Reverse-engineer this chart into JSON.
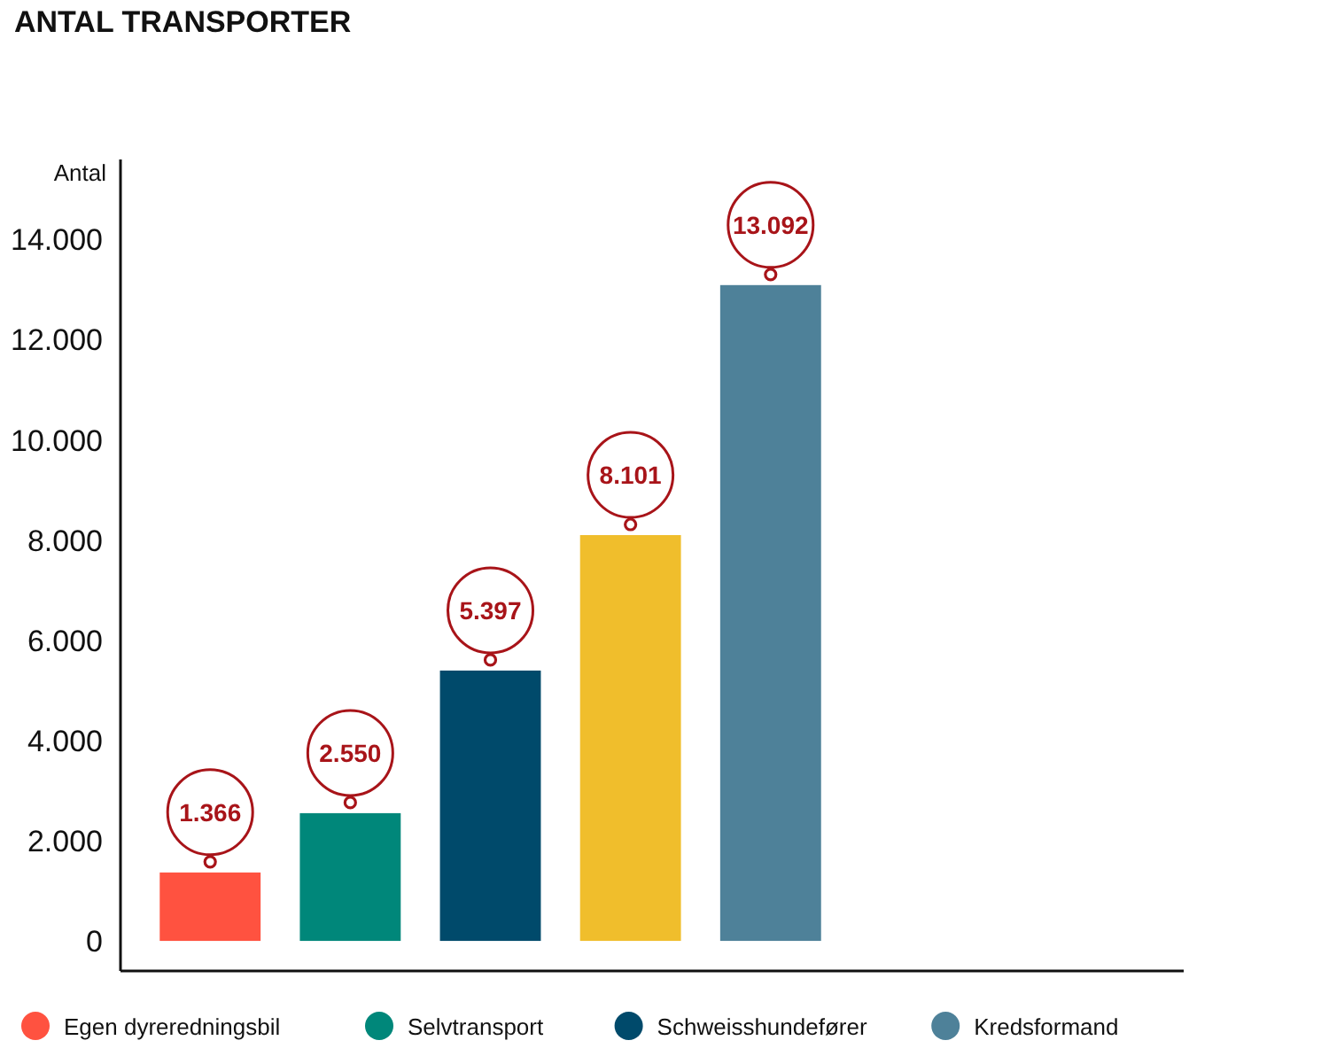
{
  "chart_data": {
    "type": "bar",
    "title": "ANTAL TRANSPORTER",
    "ylabel": "Antal",
    "categories": [
      null,
      null,
      null,
      null,
      null
    ],
    "series": [
      {
        "name": "Egen dyreredningsbil",
        "color": "#ff5240",
        "values": [
          1366,
          null,
          null,
          null,
          null
        ],
        "value_labels": [
          "1.366",
          null,
          null,
          null,
          null
        ]
      },
      {
        "name": "Selvtransport",
        "color": "#00877a",
        "values": [
          null,
          2550,
          null,
          null,
          null
        ],
        "value_labels": [
          null,
          "2.550",
          null,
          null,
          null
        ]
      },
      {
        "name": "Schweisshundefører",
        "color": "#004a6b",
        "values": [
          null,
          null,
          5397,
          null,
          null
        ],
        "value_labels": [
          null,
          null,
          "5.397",
          null,
          null
        ]
      },
      {
        "color": "#f0be2c",
        "values": [
          null,
          null,
          null,
          8101,
          null
        ],
        "value_labels": [
          null,
          null,
          null,
          "8.101",
          null
        ]
      },
      {
        "name": "Kredsformand",
        "color": "#4e8199",
        "values": [
          null,
          null,
          null,
          null,
          13092
        ],
        "value_labels": [
          null,
          null,
          null,
          null,
          "13.092"
        ]
      }
    ],
    "stacked": true,
    "ylim": [
      -600,
      15600
    ],
    "yticks": [
      0,
      {
        "value": 2000,
        "label": "2.000"
      },
      {
        "value": 4000,
        "label": "4.000"
      },
      {
        "value": 6000,
        "label": "6.000"
      },
      {
        "value": 8000,
        "label": "8.000"
      },
      {
        "value": 10000,
        "label": "10.000"
      },
      {
        "value": 12000,
        "label": "12.000"
      },
      {
        "value": 14000,
        "label": "14.000"
      }
    ],
    "legend": "bottom",
    "grid": false
  }
}
